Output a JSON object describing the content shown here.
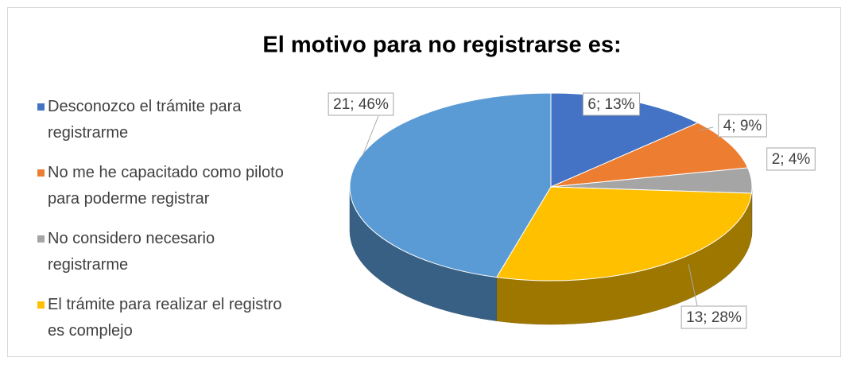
{
  "chart_data": {
    "type": "pie",
    "title": "El motivo para no registrarse es:",
    "categories": [
      "Desconozco el trámite para registrarme",
      "No me he capacitado como piloto para poderme registrar",
      "No considero necesario registrarme",
      "El trámite para realizar el registro es complejo",
      null
    ],
    "values": [
      6,
      4,
      2,
      13,
      21
    ],
    "value_labels": [
      "6; 13%",
      "4; 9%",
      "2; 4%",
      "13; 28%",
      "21; 46%"
    ],
    "colors": [
      "#4472c4",
      "#ed7d31",
      "#a5a5a5",
      "#ffc000",
      "#5b9bd5"
    ],
    "legend": "left",
    "three_d": true
  }
}
